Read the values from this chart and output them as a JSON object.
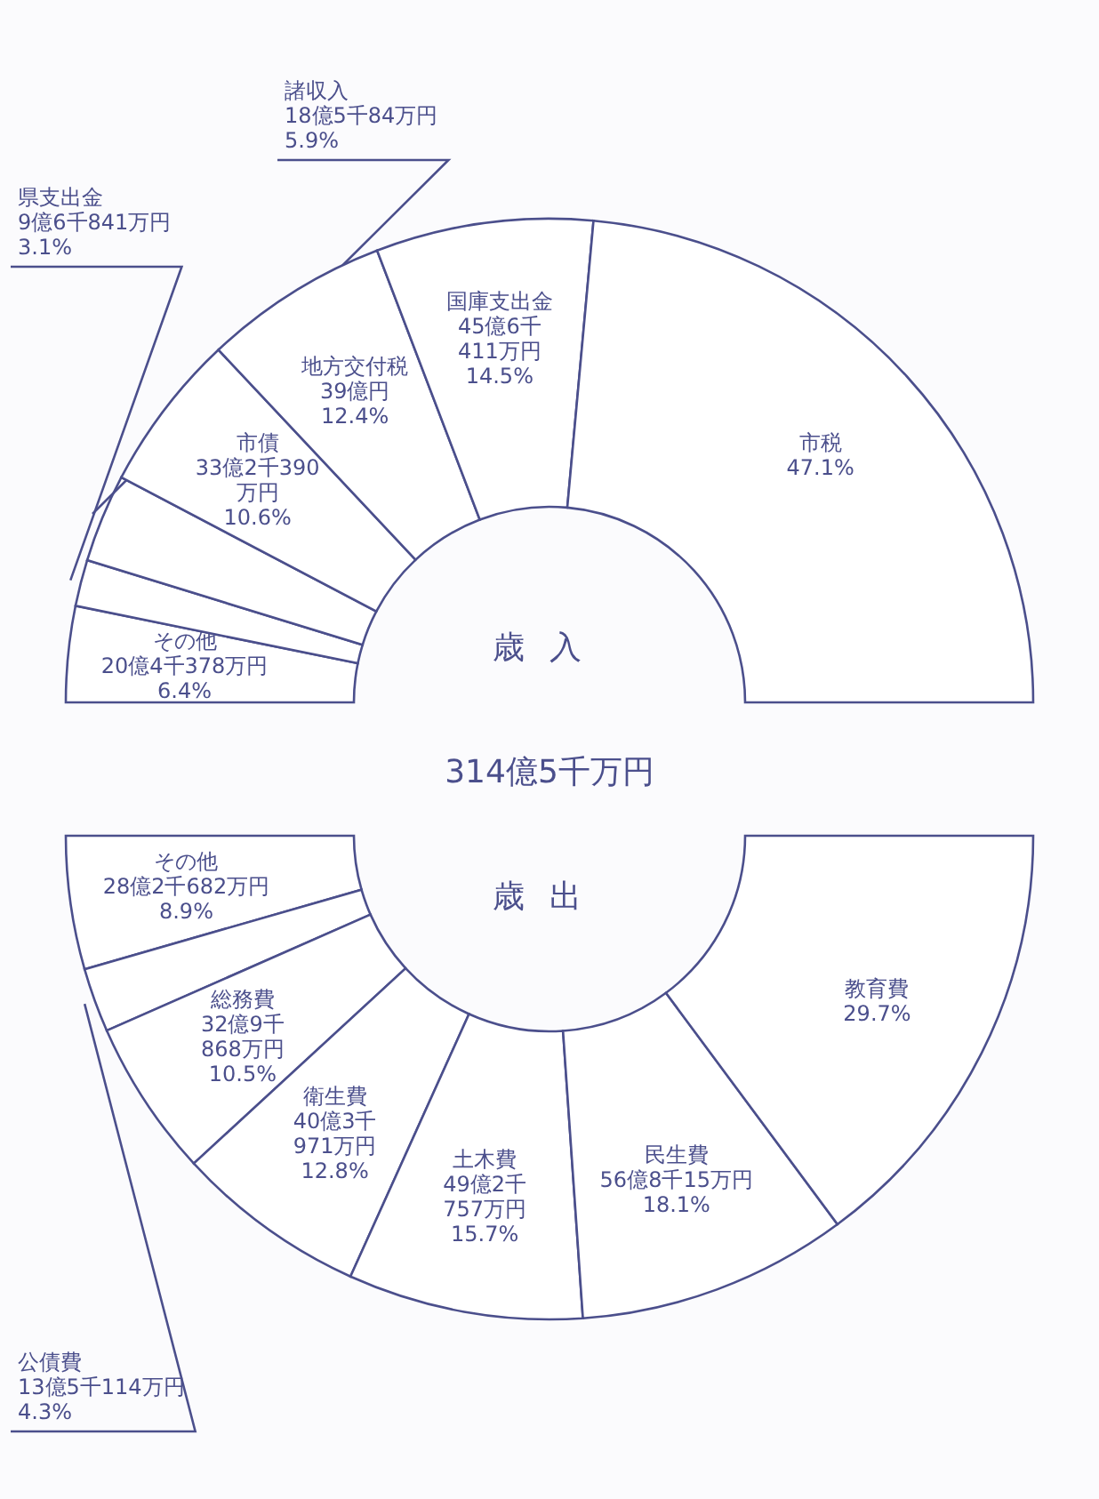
{
  "chart_data": [
    {
      "type": "donut",
      "title": "歳入",
      "annotations": [
        "314億5千万円"
      ],
      "categories": [
        "その他",
        "県支出金",
        "諸収入",
        "市債",
        "地方交付税",
        "国庫支出金",
        "市税"
      ],
      "values": [
        6.4,
        3.1,
        5.9,
        10.6,
        12.4,
        14.5,
        47.1
      ],
      "value_labels": [
        "20億4千378万円\n6.4%",
        "9億6千841万円\n3.1%",
        "18億5千84万円\n5.9%",
        "33億2千390\n万円\n10.6%",
        "39億円\n12.4%",
        "45億6千\n411万円\n14.5%",
        "47.1%"
      ],
      "colors": [
        "#ffffff",
        "#ffffff",
        "#ffffff",
        "#ffffff",
        "#ffffff",
        "#ffffff",
        "#ffffff"
      ]
    },
    {
      "type": "donut",
      "title": "歳出",
      "categories": [
        "その他",
        "公債費",
        "総務費",
        "衛生費",
        "土木費",
        "民生費",
        "教育費"
      ],
      "values": [
        8.9,
        4.3,
        10.5,
        12.8,
        15.7,
        18.1,
        29.7
      ],
      "value_labels": [
        "28億2千682万円\n8.9%",
        "13億5千114万円\n4.3%",
        "32億9千\n868万円\n10.5%",
        "40億3千\n971万円\n12.8%",
        "49億2千\n757万円\n15.7%",
        "56億8千15万円\n18.1%",
        "29.7%"
      ],
      "colors": [
        "#ffffff",
        "#ffffff",
        "#ffffff",
        "#ffffff",
        "#ffffff",
        "#ffffff",
        "#ffffff"
      ]
    }
  ]
}
